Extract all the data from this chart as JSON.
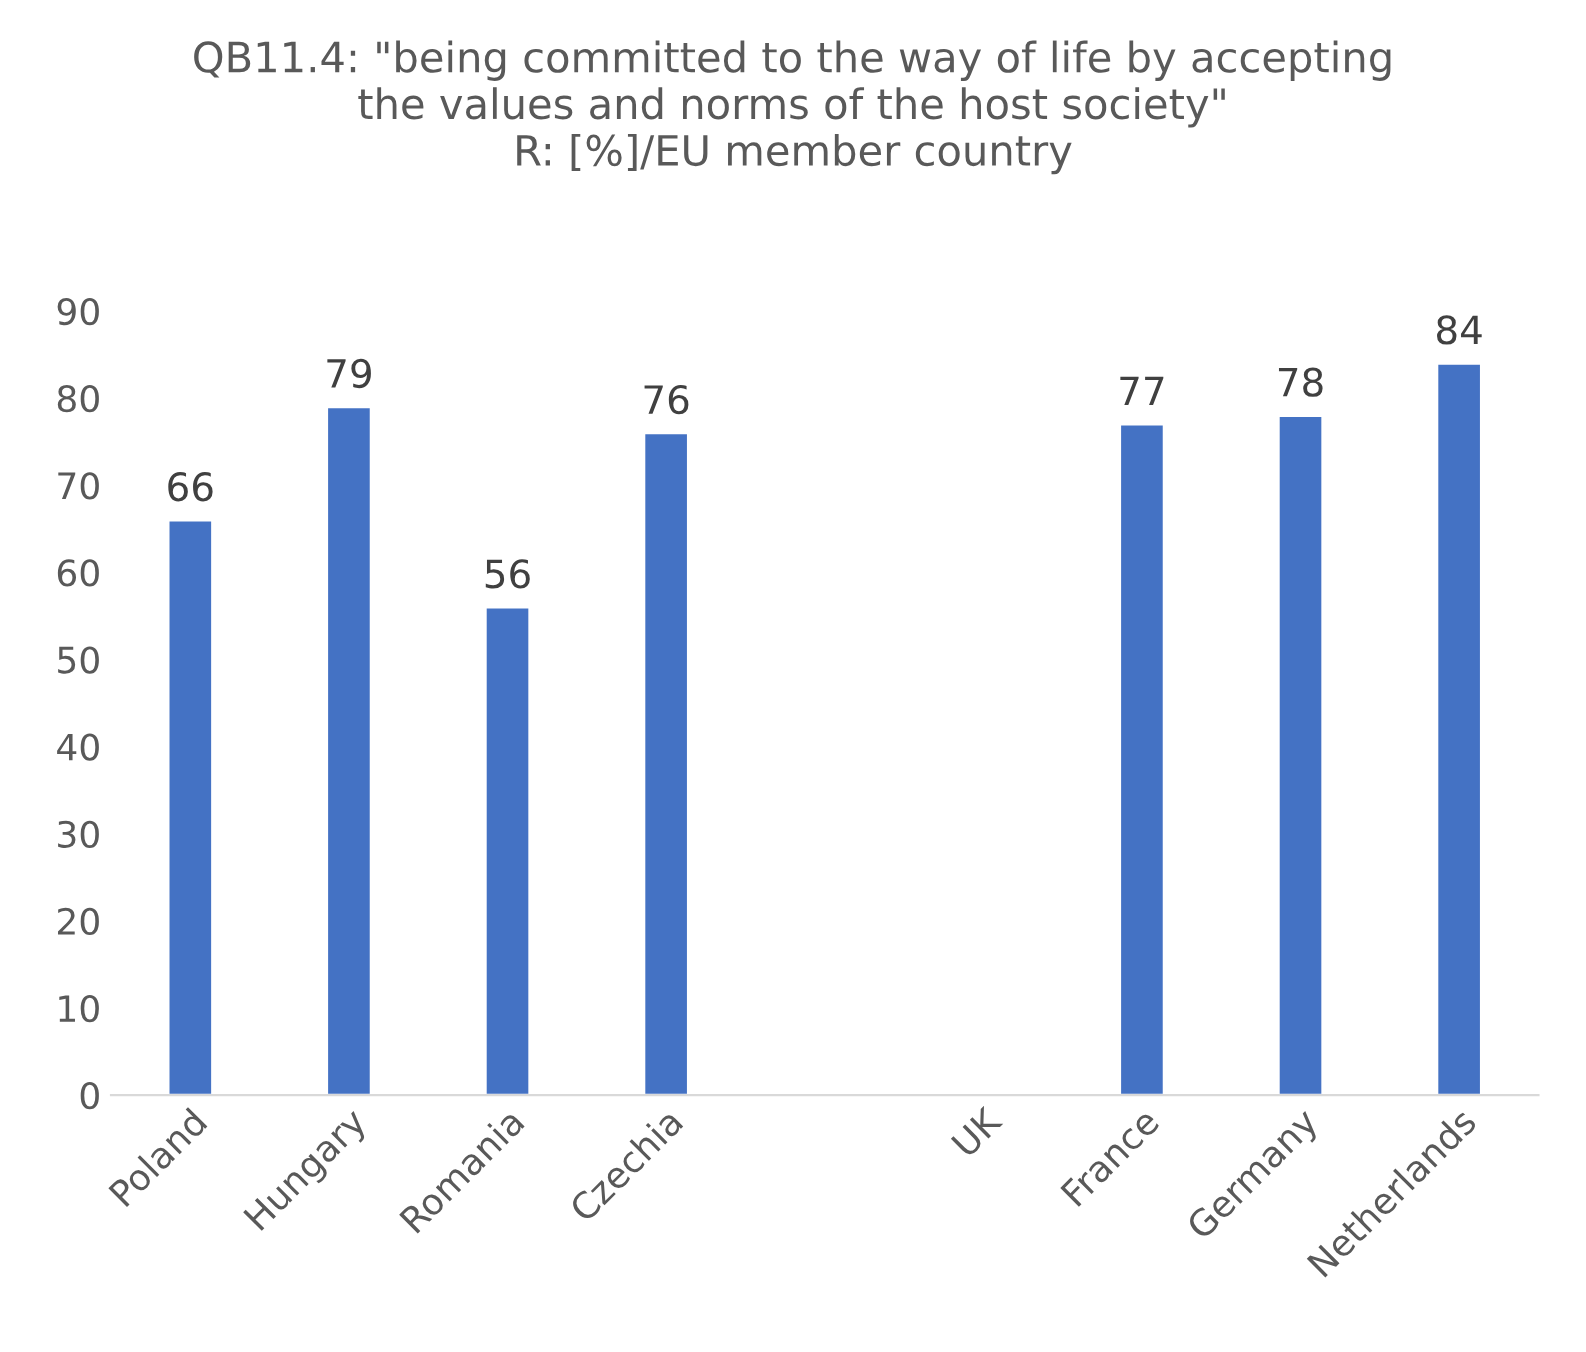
{
  "chart_data": {
    "type": "bar",
    "title": "QB11.4: \"being committed to the way of life by accepting\nthe values and norms of the host society\"\nR: [%]/EU member country",
    "categories": [
      "Poland",
      "Hungary",
      "Romania",
      "Czechia",
      null,
      "UK",
      "France",
      "Germany",
      "Netherlands"
    ],
    "values": [
      66,
      79,
      56,
      76,
      null,
      null,
      77,
      78,
      84
    ],
    "color": "#4472c4",
    "ylim": [
      0,
      90
    ],
    "yticks": [
      0,
      10,
      20,
      30,
      40,
      50,
      60,
      70,
      80,
      90
    ],
    "data_labels": true,
    "grid": false
  }
}
